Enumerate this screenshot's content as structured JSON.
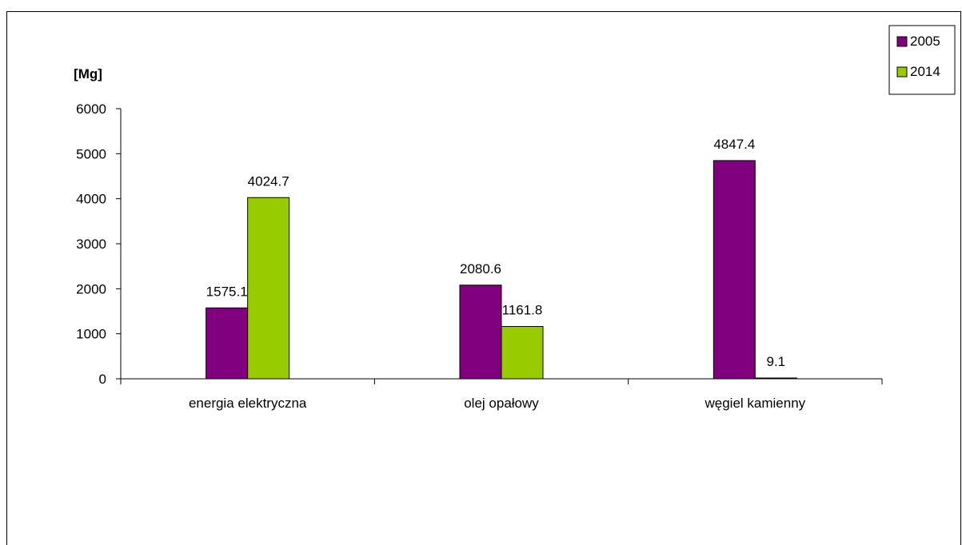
{
  "chart_data": {
    "type": "bar",
    "ylabel": "[Mg]",
    "ylim": [
      0,
      6000
    ],
    "yticks": [
      0,
      1000,
      2000,
      3000,
      4000,
      5000,
      6000
    ],
    "categories": [
      "energia elektryczna",
      "olej opałowy",
      "węgiel kamienny"
    ],
    "series": [
      {
        "name": "2005",
        "color": "#800080",
        "values": [
          1575.1,
          2080.6,
          4847.4
        ],
        "labels": [
          "1575.1",
          "2080.6",
          "4847.4"
        ]
      },
      {
        "name": "2014",
        "color": "#99CC00",
        "values": [
          4024.7,
          1161.8,
          9.1
        ],
        "labels": [
          "4024.7",
          "1161.8",
          "9.1"
        ]
      }
    ],
    "legend": "top-right",
    "grid": false
  }
}
